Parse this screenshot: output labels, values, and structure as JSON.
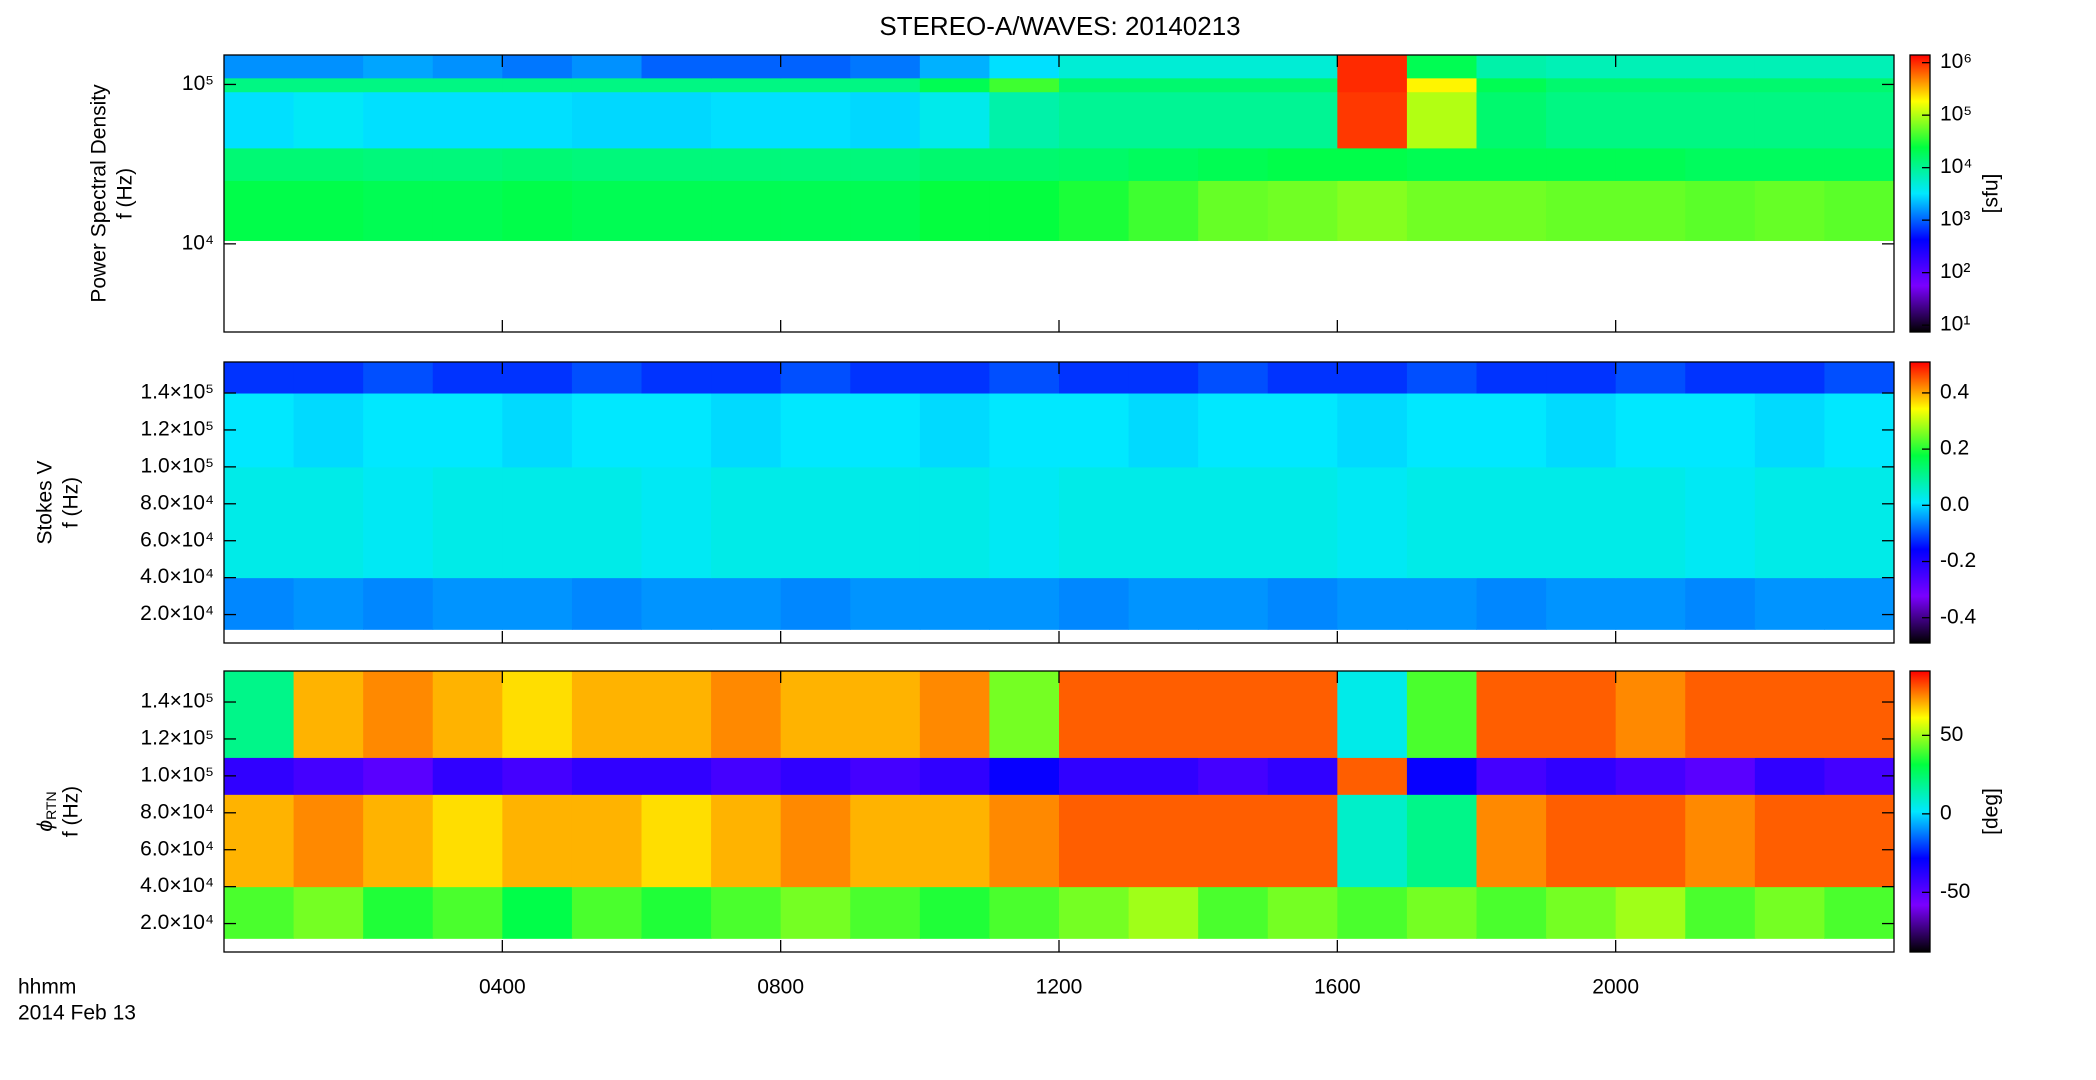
{
  "chart_data": {
    "type": "spectrogram",
    "title": "STEREO-A/WAVES: 20140213",
    "xlabel": "hhmm",
    "date": "2014 Feb 13",
    "xlim": [
      0,
      24
    ],
    "xticks": [
      {
        "value": 4,
        "label": "0400"
      },
      {
        "value": 8,
        "label": "0800"
      },
      {
        "value": 12,
        "label": "1200"
      },
      {
        "value": 16,
        "label": "1600"
      },
      {
        "value": 20,
        "label": "2000"
      }
    ],
    "xbins": [
      0,
      1,
      2,
      3,
      4,
      5,
      6,
      7,
      8,
      9,
      10,
      11,
      12,
      13,
      14,
      15,
      16,
      17,
      18,
      19,
      20,
      21,
      22,
      23,
      24
    ],
    "colormap": [
      "#000000",
      "#7a00ff",
      "#0000ff",
      "#00e8ff",
      "#00ff40",
      "#ffff00",
      "#ff0000"
    ],
    "panels": [
      {
        "ylabel": [
          "Power Spectral Density",
          "f (Hz)"
        ],
        "ylog": true,
        "ylim": [
          2800,
          153000
        ],
        "yticks": [
          {
            "value": 10000,
            "label": "10⁴"
          },
          {
            "value": 100000,
            "label": "10⁵"
          }
        ],
        "ybins": [
          10500,
          25000,
          40000,
          90000,
          110000,
          153000
        ],
        "values": [
          [
            22000,
            22000,
            20000,
            20000,
            22000,
            20000,
            20000,
            20000,
            20000,
            20000,
            25000,
            25000,
            30000,
            40000,
            55000,
            60000,
            70000,
            60000,
            60000,
            55000,
            55000,
            50000,
            55000,
            50000
          ],
          [
            14000,
            14000,
            13000,
            13000,
            14000,
            13000,
            13000,
            13000,
            13000,
            13000,
            15000,
            15000,
            16000,
            18000,
            20000,
            22000,
            22000,
            20000,
            20000,
            20000,
            20000,
            18000,
            18000,
            18000
          ],
          [
            3000,
            3500,
            3000,
            3000,
            3000,
            2800,
            2800,
            3000,
            3000,
            2800,
            4000,
            8000,
            10000,
            10000,
            10000,
            10000,
            900000,
            100000,
            15000,
            12000,
            12000,
            12000,
            12000,
            12000
          ],
          [
            12000,
            12000,
            12000,
            12000,
            12000,
            12000,
            12000,
            12000,
            12000,
            12000,
            20000,
            40000,
            15000,
            15000,
            15000,
            15000,
            1000000,
            200000,
            20000,
            15000,
            15000,
            15000,
            15000,
            15000
          ],
          [
            1500,
            1500,
            1800,
            1500,
            1200,
            1500,
            1000,
            1000,
            1000,
            1200,
            2000,
            3000,
            5000,
            5000,
            5000,
            5000,
            1000000,
            20000,
            8000,
            7000,
            7000,
            7000,
            7000,
            7000
          ]
        ],
        "clog": true,
        "clim": [
          7.4,
          1400000
        ],
        "cticks": [
          {
            "value": 10,
            "label": "10¹"
          },
          {
            "value": 100,
            "label": "10²"
          },
          {
            "value": 1000,
            "label": "10³"
          },
          {
            "value": 10000,
            "label": "10⁴"
          },
          {
            "value": 100000,
            "label": "10⁵"
          },
          {
            "value": 1000000,
            "label": "10⁶"
          }
        ],
        "clabel": "[sfu]"
      },
      {
        "ylabel": [
          "Stokes V",
          "f (Hz)"
        ],
        "ylog": false,
        "ylim": [
          4600,
          156800
        ],
        "yticks": [
          {
            "value": 20000,
            "label": "2.0×10⁴"
          },
          {
            "value": 40000,
            "label": "4.0×10⁴"
          },
          {
            "value": 60000,
            "label": "6.0×10⁴"
          },
          {
            "value": 80000,
            "label": "8.0×10⁴"
          },
          {
            "value": 100000,
            "label": "1.0×10⁵"
          },
          {
            "value": 120000,
            "label": "1.2×10⁵"
          },
          {
            "value": 140000,
            "label": "1.4×10⁵"
          }
        ],
        "ybins": [
          12000,
          40000,
          100000,
          140000,
          156800
        ],
        "values": [
          [
            -0.06,
            -0.05,
            -0.06,
            -0.05,
            -0.05,
            -0.06,
            -0.05,
            -0.05,
            -0.06,
            -0.05,
            -0.05,
            -0.05,
            -0.06,
            -0.05,
            -0.05,
            -0.06,
            -0.05,
            -0.05,
            -0.06,
            -0.05,
            -0.05,
            -0.06,
            -0.05,
            -0.05
          ],
          [
            0.03,
            0.03,
            0.02,
            0.03,
            0.03,
            0.03,
            0.02,
            0.03,
            0.03,
            0.03,
            0.03,
            0.02,
            0.03,
            0.03,
            0.03,
            0.03,
            0.02,
            0.03,
            0.03,
            0.03,
            0.03,
            0.02,
            0.03,
            0.03
          ],
          [
            0.01,
            0.0,
            0.01,
            0.01,
            0.0,
            0.01,
            0.01,
            0.0,
            0.01,
            0.01,
            0.0,
            0.01,
            0.01,
            0.0,
            0.01,
            0.01,
            0.0,
            0.01,
            0.01,
            0.0,
            0.01,
            0.01,
            0.0,
            0.01
          ],
          [
            -0.12,
            -0.12,
            -0.1,
            -0.12,
            -0.12,
            -0.1,
            -0.12,
            -0.12,
            -0.1,
            -0.12,
            -0.12,
            -0.1,
            -0.12,
            -0.12,
            -0.1,
            -0.12,
            -0.12,
            -0.1,
            -0.12,
            -0.12,
            -0.1,
            -0.12,
            -0.12,
            -0.1
          ]
        ],
        "clog": false,
        "clim": [
          -0.49,
          0.51
        ],
        "cticks": [
          -0.4,
          -0.2,
          {
            "value": 0,
            "label": "0.0"
          },
          0.2,
          0.4
        ],
        "clabel": ""
      },
      {
        "ylabel": [
          {
            "symbol": "ϕ",
            "subscript": "RTN"
          },
          "f (Hz)"
        ],
        "ylog": false,
        "ylim": [
          4600,
          156800
        ],
        "yticks": [
          {
            "value": 20000,
            "label": "2.0×10⁴"
          },
          {
            "value": 40000,
            "label": "4.0×10⁴"
          },
          {
            "value": 60000,
            "label": "6.0×10⁴"
          },
          {
            "value": 80000,
            "label": "8.0×10⁴"
          },
          {
            "value": 100000,
            "label": "1.0×10⁵"
          },
          {
            "value": 120000,
            "label": "1.2×10⁵"
          },
          {
            "value": 140000,
            "label": "1.4×10⁵"
          }
        ],
        "ybins": [
          12000,
          40000,
          90000,
          110000,
          156800
        ],
        "values": [
          [
            40,
            45,
            35,
            40,
            30,
            40,
            35,
            40,
            45,
            40,
            35,
            40,
            45,
            50,
            40,
            45,
            40,
            45,
            40,
            45,
            50,
            40,
            45,
            40
          ],
          [
            70,
            75,
            70,
            65,
            70,
            70,
            65,
            70,
            75,
            70,
            70,
            75,
            80,
            80,
            80,
            80,
            10,
            20,
            75,
            80,
            80,
            75,
            80,
            80
          ],
          [
            -40,
            -45,
            -50,
            -40,
            -45,
            -40,
            -40,
            -45,
            -40,
            -45,
            -40,
            -30,
            -40,
            -40,
            -45,
            -40,
            80,
            -30,
            -45,
            -40,
            -45,
            -50,
            -40,
            -45
          ],
          [
            20,
            70,
            75,
            70,
            65,
            70,
            70,
            75,
            70,
            70,
            75,
            45,
            80,
            80,
            80,
            80,
            5,
            40,
            80,
            80,
            75,
            80,
            80,
            80
          ]
        ],
        "clog": false,
        "clim": [
          -88,
          91
        ],
        "cticks": [
          -50,
          0,
          50
        ],
        "clabel": "[deg]"
      }
    ]
  }
}
